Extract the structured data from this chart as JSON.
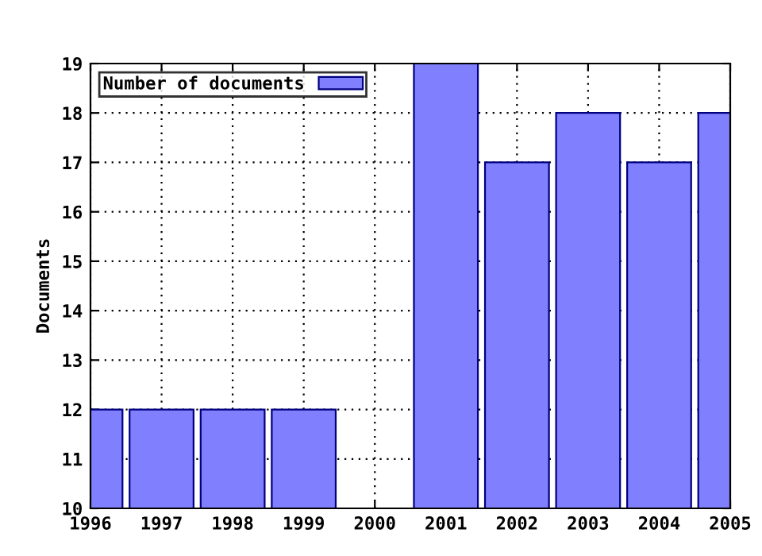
{
  "chart_data": {
    "type": "bar",
    "ylabel": "Documents",
    "x": [
      1996,
      1997,
      1998,
      1999,
      2000,
      2001,
      2002,
      2003,
      2004,
      2005
    ],
    "series": [
      {
        "name": "Number of documents",
        "color": "#8080ff",
        "values": [
          12,
          12,
          12,
          12,
          null,
          19,
          17,
          18,
          17,
          18
        ]
      }
    ],
    "xlim": [
      1996,
      2005
    ],
    "xticks": [
      1996,
      1997,
      1998,
      1999,
      2000,
      2001,
      2002,
      2003,
      2004,
      2005
    ],
    "ylim": [
      10,
      19
    ],
    "yticks": [
      10,
      11,
      12,
      13,
      14,
      15,
      16,
      17,
      18,
      19
    ],
    "grid": true,
    "legend": "top left"
  }
}
